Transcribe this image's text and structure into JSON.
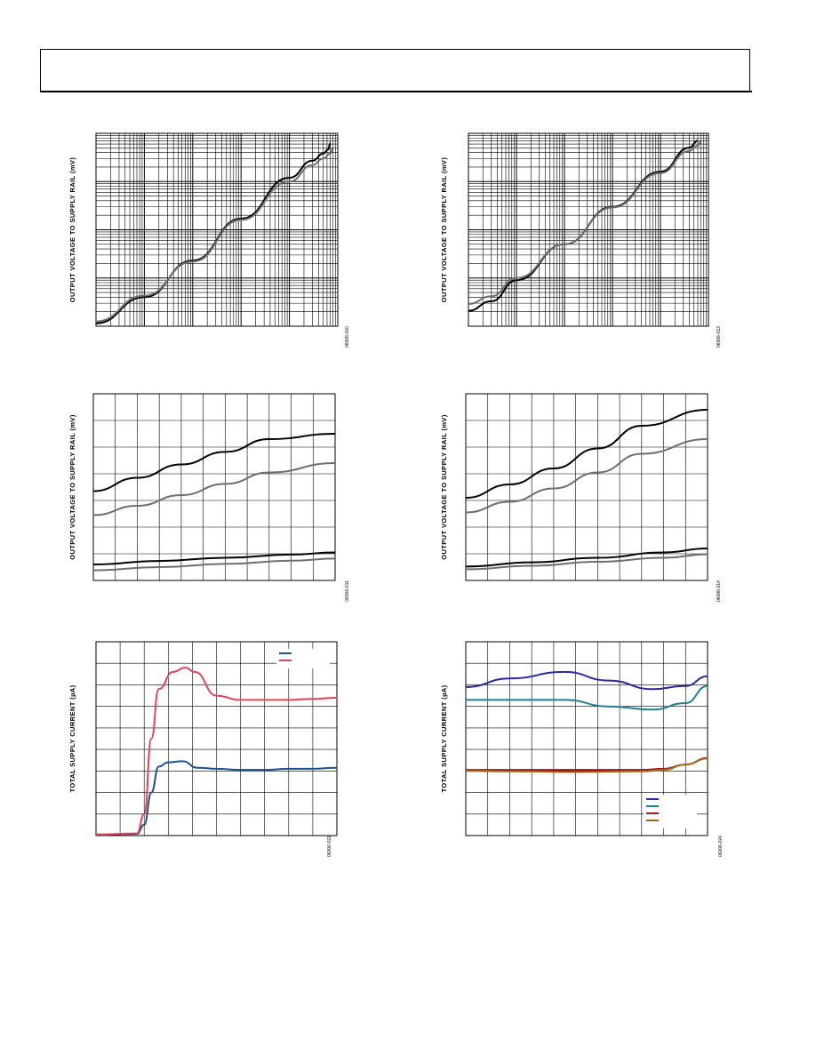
{
  "page": {
    "header": {
      "title": ""
    }
  },
  "chart_data": [
    {
      "id": "tl",
      "type": "line",
      "ylabel": "OUTPUT VOLTAGE TO SUPPLY RAIL (mV)",
      "figure_code": "06006-010",
      "xscale": "log",
      "yscale": "log",
      "xlim": [
        0.001,
        100
      ],
      "ylim": [
        1,
        10000
      ],
      "series": [
        {
          "color": "#000000",
          "values": [
            [
              0.001,
              1.15
            ],
            [
              0.01,
              4
            ],
            [
              0.1,
              23
            ],
            [
              1,
              170
            ],
            [
              10,
              1200
            ],
            [
              30,
              2700
            ],
            [
              50,
              3800
            ],
            [
              63,
              4600
            ],
            [
              70,
              6200
            ]
          ]
        },
        {
          "color": "#6e6e6e",
          "values": [
            [
              0.001,
              1.25
            ],
            [
              0.01,
              4.3
            ],
            [
              0.1,
              22
            ],
            [
              1,
              160
            ],
            [
              10,
              1000
            ],
            [
              30,
              2200
            ],
            [
              50,
              3000
            ],
            [
              70,
              3800
            ],
            [
              80,
              5000
            ]
          ]
        }
      ]
    },
    {
      "id": "tr",
      "type": "line",
      "ylabel": "OUTPUT VOLTAGE TO SUPPLY RAIL (mV)",
      "figure_code": "06006-013",
      "xscale": "log",
      "yscale": "log",
      "xlim": [
        0.001,
        100
      ],
      "ylim": [
        1,
        10000
      ],
      "series": [
        {
          "color": "#000000",
          "values": [
            [
              0.001,
              2.1
            ],
            [
              0.003,
              3.3
            ],
            [
              0.01,
              9
            ],
            [
              0.1,
              50
            ],
            [
              1,
              300
            ],
            [
              10,
              1600
            ],
            [
              40,
              5000
            ],
            [
              60,
              7000
            ]
          ]
        },
        {
          "color": "#6e6e6e",
          "values": [
            [
              0.001,
              2.9
            ],
            [
              0.003,
              4.2
            ],
            [
              0.01,
              10
            ],
            [
              0.1,
              50
            ],
            [
              1,
              290
            ],
            [
              10,
              1500
            ],
            [
              40,
              4300
            ],
            [
              60,
              5600
            ],
            [
              70,
              6800
            ]
          ]
        }
      ]
    },
    {
      "id": "ml",
      "type": "line",
      "ylabel": "OUTPUT VOLTAGE TO SUPPLY RAIL (mV)",
      "figure_code": "06006-011",
      "xlim": [
        0,
        11
      ],
      "ylim": [
        0,
        7
      ],
      "xgrid": 11,
      "ygrid": 7,
      "series": [
        {
          "color": "#000000",
          "values": [
            [
              0,
              3.35
            ],
            [
              2,
              3.85
            ],
            [
              4,
              4.35
            ],
            [
              6,
              4.82
            ],
            [
              8,
              5.3
            ],
            [
              11,
              5.5
            ]
          ]
        },
        {
          "color": "#6e6e6e",
          "values": [
            [
              0,
              2.45
            ],
            [
              2,
              2.8
            ],
            [
              4,
              3.2
            ],
            [
              6,
              3.62
            ],
            [
              8,
              4.05
            ],
            [
              11,
              4.4
            ]
          ]
        },
        {
          "color": "#000000",
          "values": [
            [
              0,
              0.6
            ],
            [
              3,
              0.73
            ],
            [
              6,
              0.85
            ],
            [
              9,
              0.97
            ],
            [
              11,
              1.05
            ]
          ]
        },
        {
          "color": "#6e6e6e",
          "values": [
            [
              0,
              0.38
            ],
            [
              3,
              0.5
            ],
            [
              6,
              0.62
            ],
            [
              9,
              0.74
            ],
            [
              11,
              0.82
            ]
          ]
        }
      ]
    },
    {
      "id": "mr",
      "type": "line",
      "ylabel": "OUTPUT VOLTAGE TO SUPPLY RAIL (mV)",
      "figure_code": "06006-014",
      "xlim": [
        0,
        11
      ],
      "ylim": [
        0,
        7
      ],
      "xgrid": 11,
      "ygrid": 7,
      "series": [
        {
          "color": "#000000",
          "values": [
            [
              0,
              3.1
            ],
            [
              2,
              3.6
            ],
            [
              4,
              4.2
            ],
            [
              6,
              4.95
            ],
            [
              8,
              5.8
            ],
            [
              11,
              6.4
            ]
          ]
        },
        {
          "color": "#6e6e6e",
          "values": [
            [
              0,
              2.55
            ],
            [
              2,
              2.95
            ],
            [
              4,
              3.45
            ],
            [
              6,
              4.05
            ],
            [
              8,
              4.75
            ],
            [
              11,
              5.3
            ]
          ]
        },
        {
          "color": "#000000",
          "values": [
            [
              0,
              0.52
            ],
            [
              3,
              0.68
            ],
            [
              6,
              0.85
            ],
            [
              9,
              1.05
            ],
            [
              11,
              1.2
            ]
          ]
        },
        {
          "color": "#6e6e6e",
          "values": [
            [
              0,
              0.42
            ],
            [
              3,
              0.55
            ],
            [
              6,
              0.7
            ],
            [
              9,
              0.85
            ],
            [
              11,
              0.98
            ]
          ]
        }
      ]
    },
    {
      "id": "bl",
      "type": "line",
      "ylabel": "TOTAL SUPPLY CURRENT (µA)",
      "figure_code": "06006-021",
      "xlim": [
        0,
        10
      ],
      "ylim": [
        0,
        9
      ],
      "xgrid": 10,
      "ygrid": 9,
      "legend": {
        "position": "top-right",
        "entries": [
          {
            "color": "#1d4f8c",
            "label": ""
          },
          {
            "color": "#e2435b",
            "label": ""
          }
        ]
      },
      "series": [
        {
          "color": "#1d4f8c",
          "values": [
            [
              0,
              0.05
            ],
            [
              1.7,
              0.08
            ],
            [
              2.0,
              0.5
            ],
            [
              2.3,
              2.0
            ],
            [
              2.6,
              3.2
            ],
            [
              3.0,
              3.4
            ],
            [
              3.6,
              3.45
            ],
            [
              4.2,
              3.15
            ],
            [
              5,
              3.1
            ],
            [
              6,
              3.05
            ],
            [
              7,
              3.05
            ],
            [
              8,
              3.1
            ],
            [
              9,
              3.1
            ],
            [
              10,
              3.15
            ]
          ]
        },
        {
          "color": "#e2435b",
          "values": [
            [
              0,
              0.05
            ],
            [
              1.7,
              0.1
            ],
            [
              2.0,
              1.0
            ],
            [
              2.3,
              4.5
            ],
            [
              2.6,
              6.8
            ],
            [
              3.2,
              7.6
            ],
            [
              3.7,
              7.8
            ],
            [
              4.1,
              7.6
            ],
            [
              5,
              6.5
            ],
            [
              6,
              6.3
            ],
            [
              7,
              6.3
            ],
            [
              8,
              6.3
            ],
            [
              9,
              6.35
            ],
            [
              10,
              6.4
            ]
          ]
        }
      ]
    },
    {
      "id": "br",
      "type": "line",
      "ylabel": "TOTAL SUPPLY CURRENT (µA)",
      "figure_code": "06006-024",
      "xlim": [
        0,
        11
      ],
      "ylim": [
        0,
        9
      ],
      "xgrid": 11,
      "ygrid": 9,
      "legend": {
        "position": "bottom-right",
        "entries": [
          {
            "color": "#2a2aa0",
            "label": ""
          },
          {
            "color": "#1f7f93",
            "label": ""
          },
          {
            "color": "#9b1b1b",
            "label": ""
          },
          {
            "color": "#a66a1f",
            "label": ""
          }
        ]
      },
      "series": [
        {
          "color": "#2a2aa0",
          "values": [
            [
              0,
              6.9
            ],
            [
              2,
              7.3
            ],
            [
              4.5,
              7.6
            ],
            [
              6.5,
              7.2
            ],
            [
              8.5,
              6.8
            ],
            [
              10,
              6.95
            ],
            [
              11,
              7.4
            ]
          ]
        },
        {
          "color": "#1f7f93",
          "values": [
            [
              0,
              6.3
            ],
            [
              2,
              6.3
            ],
            [
              4.5,
              6.3
            ],
            [
              6.5,
              6.0
            ],
            [
              8.5,
              5.85
            ],
            [
              10,
              6.15
            ],
            [
              11,
              6.95
            ]
          ]
        },
        {
          "color": "#9b1b1b",
          "values": [
            [
              0,
              3.05
            ],
            [
              2,
              3.05
            ],
            [
              5,
              3.05
            ],
            [
              8,
              3.05
            ],
            [
              9,
              3.1
            ],
            [
              10,
              3.3
            ],
            [
              11,
              3.6
            ]
          ]
        },
        {
          "color": "#a66a1f",
          "values": [
            [
              0,
              3.0
            ],
            [
              2,
              2.98
            ],
            [
              5,
              2.95
            ],
            [
              8,
              2.98
            ],
            [
              9,
              3.05
            ],
            [
              10,
              3.3
            ],
            [
              11,
              3.58
            ]
          ]
        }
      ]
    }
  ]
}
